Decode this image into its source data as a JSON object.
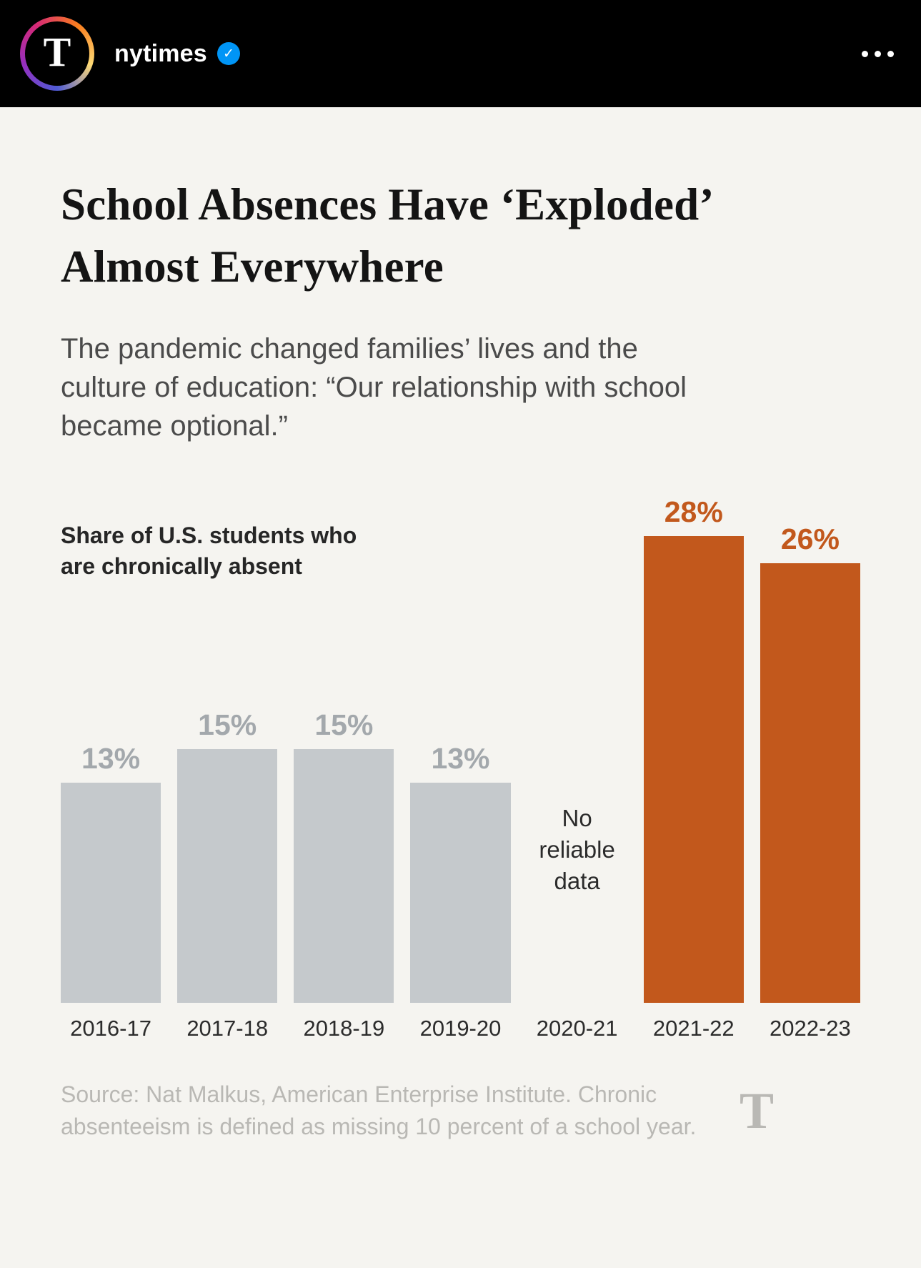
{
  "post_header": {
    "username": "nytimes",
    "logo_glyph": "T",
    "verified_glyph": "✓"
  },
  "article": {
    "headline": "School Absences Have ‘Exploded’ Almost Everywhere",
    "subhead": "The pandemic changed families’ lives and the culture of education: “Our relationship with school became optional.”"
  },
  "chart_data": {
    "type": "bar",
    "title": "Share of U.S. students who are chronically absent",
    "categories": [
      "2016-17",
      "2017-18",
      "2018-19",
      "2019-20",
      "2020-21",
      "2021-22",
      "2022-23"
    ],
    "values": [
      13,
      15,
      15,
      13,
      null,
      28,
      26
    ],
    "value_labels": [
      "13%",
      "15%",
      "15%",
      "13%",
      null,
      "28%",
      "26%"
    ],
    "no_data_label": "No reliable data",
    "highlighted": [
      false,
      false,
      false,
      false,
      false,
      true,
      true
    ],
    "ylim": [
      0,
      30
    ],
    "grid": false,
    "legend": "none",
    "colors": {
      "bar_gray": "#c5c9cc",
      "bar_orange": "#c2581c",
      "label_gray": "#a3a8ac",
      "label_orange": "#c2581c"
    }
  },
  "footer": {
    "source": "Source: Nat Malkus, American Enterprise Institute. Chronic absenteeism is defined as missing 10 percent of a school year.",
    "logo_glyph": "T"
  }
}
